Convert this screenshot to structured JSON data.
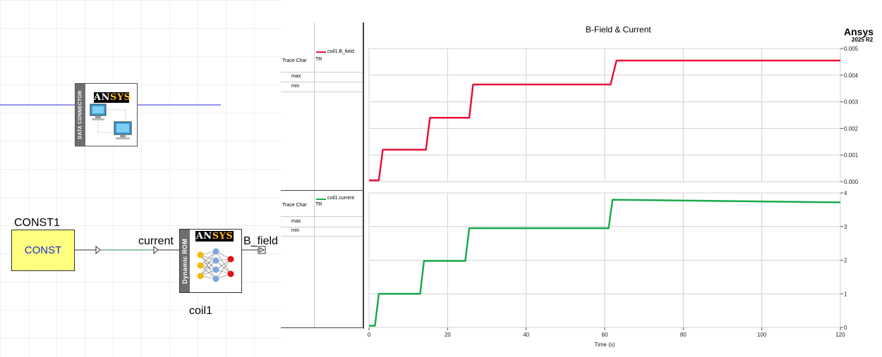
{
  "schematic": {
    "data_connector": {
      "strip_label": "DATA CONNECTOR",
      "logo_left": "AN",
      "logo_right": "SYS"
    },
    "const_block": {
      "name": "CONST1",
      "label": "CONST"
    },
    "rom_block": {
      "name": "coil1",
      "strip_label": "Dynamic ROM",
      "logo_left": "AN",
      "logo_right": "SYS"
    },
    "wire_labels": {
      "input": "current",
      "output": "B_field"
    },
    "wire_color": "#2b2bd6"
  },
  "plot": {
    "title": "B-Field & Current",
    "brand": "Ansys",
    "version": "2025 R2",
    "legend": {
      "top": {
        "trace_char": "Trace Char",
        "trace_name": "coil1.B_field",
        "trace_type": "TR",
        "max": "max",
        "min": "min"
      },
      "bottom": {
        "trace_char": "Trace Char",
        "trace_name": "coil1.current",
        "trace_type": "TR",
        "max": "max",
        "min": "min"
      }
    }
  },
  "chart_data": [
    {
      "type": "line",
      "title": "B-Field & Current",
      "xlabel": "",
      "ylabel": "",
      "xlim": [
        0,
        120
      ],
      "ylim": [
        0,
        0.005
      ],
      "x_ticks": [
        "0",
        "20",
        "40",
        "60",
        "80",
        "100",
        "120"
      ],
      "y_ticks": [
        "0.000",
        "0.001",
        "0.002",
        "0.003",
        "0.004",
        "0.005"
      ],
      "y_tick_values": [
        0,
        0.001,
        0.002,
        0.003,
        0.004,
        0.005
      ],
      "grid": true,
      "series": [
        {
          "name": "coil1.B_field",
          "color": "#e8123c",
          "x": [
            0,
            2.5,
            3.5,
            14.5,
            15.5,
            25.5,
            26.5,
            61.5,
            63,
            120
          ],
          "y": [
            5e-05,
            5e-05,
            0.0012,
            0.0012,
            0.0024,
            0.0024,
            0.00365,
            0.00365,
            0.00455,
            0.00455
          ]
        }
      ]
    },
    {
      "type": "line",
      "xlabel": "Time (s)",
      "ylabel": "",
      "xlim": [
        0,
        120
      ],
      "ylim": [
        0,
        4
      ],
      "x_ticks": [
        "0",
        "20",
        "40",
        "60",
        "80",
        "100",
        "120"
      ],
      "y_ticks": [
        "0",
        "1",
        "2",
        "3",
        "4"
      ],
      "y_tick_values": [
        0,
        1,
        2,
        3,
        4
      ],
      "grid": true,
      "series": [
        {
          "name": "coil1.current",
          "color": "#1aaa4b",
          "x": [
            0,
            1.5,
            2.5,
            13,
            14,
            24.5,
            25.5,
            61,
            62,
            120
          ],
          "y": [
            0.05,
            0.05,
            1.0,
            1.0,
            1.98,
            1.98,
            2.95,
            2.95,
            3.8,
            3.72
          ]
        }
      ]
    }
  ]
}
